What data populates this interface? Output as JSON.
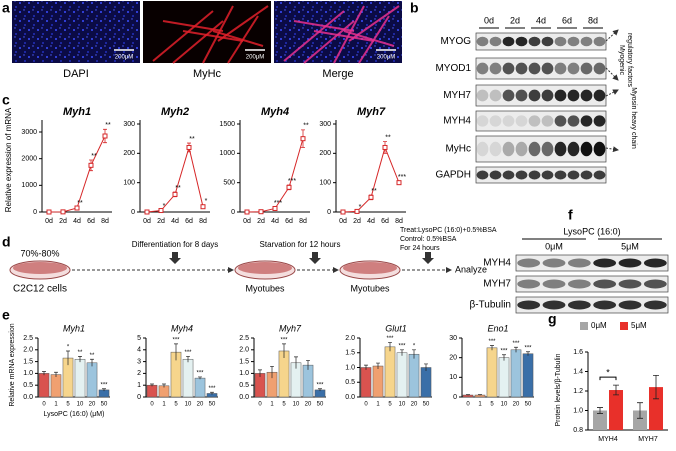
{
  "panels": {
    "a": {
      "letter": "a",
      "images": [
        {
          "label": "DAPI",
          "scale_bar": "200μM"
        },
        {
          "label": "MyHc",
          "scale_bar": "200μM"
        },
        {
          "label": "Merge",
          "scale_bar": "200μM"
        }
      ]
    },
    "b": {
      "letter": "b",
      "lanes": [
        "0d",
        "2d",
        "4d",
        "6d",
        "8d"
      ],
      "bands": [
        "MYOG",
        "MYOD1",
        "MYH7",
        "MYH4",
        "MyHc",
        "GAPDH"
      ],
      "groups": [
        {
          "lines": [
            "Myogenic",
            "regulatory factors"
          ]
        },
        {
          "lines": [
            "Myosin heavy chain"
          ]
        }
      ]
    },
    "c": {
      "letter": "c",
      "ylabel": "Relative expression of mRNA",
      "charts": [
        {
          "type": "line",
          "title": "Myh1",
          "color": "#d62728",
          "categories": [
            "0d",
            "2d",
            "4d",
            "6d",
            "8d"
          ],
          "values": [
            0,
            5,
            150,
            1750,
            2850
          ],
          "errors": [
            5,
            5,
            40,
            200,
            250
          ],
          "significance": [
            null,
            null,
            "**",
            "**",
            "**"
          ],
          "ylim": [
            0,
            3300
          ],
          "yticks": [
            0,
            1000,
            2000,
            3000
          ]
        },
        {
          "type": "line",
          "title": "Myh2",
          "color": "#d62728",
          "categories": [
            "0d",
            "2d",
            "4d",
            "6d",
            "8d"
          ],
          "values": [
            0,
            5,
            60,
            220,
            18
          ],
          "errors": [
            1,
            2,
            8,
            15,
            5
          ],
          "significance": [
            null,
            "*",
            "**",
            "**",
            "*"
          ],
          "ylim": [
            0,
            300
          ],
          "yticks": [
            0,
            100,
            200,
            300
          ]
        },
        {
          "type": "line",
          "title": "Myh4",
          "color": "#d62728",
          "categories": [
            "0d",
            "2d",
            "4d",
            "6d",
            "8d"
          ],
          "values": [
            0,
            5,
            60,
            420,
            1250
          ],
          "errors": [
            2,
            3,
            20,
            40,
            150
          ],
          "significance": [
            null,
            null,
            "***",
            "***",
            "**"
          ],
          "ylim": [
            0,
            1500
          ],
          "yticks": [
            0,
            500,
            1000,
            1500
          ]
        },
        {
          "type": "line",
          "title": "Myh7",
          "color": "#d62728",
          "categories": [
            "0d",
            "2d",
            "4d",
            "6d",
            "8d"
          ],
          "values": [
            0,
            2,
            50,
            220,
            100
          ],
          "errors": [
            1,
            1,
            8,
            20,
            6
          ],
          "significance": [
            null,
            "*",
            "**",
            "**",
            "***"
          ],
          "ylim": [
            0,
            300
          ],
          "yticks": [
            0,
            100,
            200,
            300
          ]
        }
      ]
    },
    "d": {
      "letter": "d",
      "confluence": "70%-80%",
      "cells": "C2C12 cells",
      "step1": "Differentiation for 8 days",
      "myotubes1": "Myotubes",
      "step2": "Starvation for 12 hours",
      "myotubes2": "Myotubes",
      "treatment": [
        "Treat:LysoPC (16:0)+0.5%BSA",
        "Control: 0.5%BSA",
        "For 24 hours"
      ],
      "analyze": "Analyze"
    },
    "e": {
      "letter": "e",
      "ylabel": "Relative mRNA expression",
      "xlabel": "LysoPC (16:0) (μM)",
      "colors": [
        "#d9534f",
        "#f0a070",
        "#f6d58c",
        "#e4f1f1",
        "#9cc4dd",
        "#3a6fa8"
      ],
      "charts": [
        {
          "type": "bar",
          "title": "Myh1",
          "categories": [
            "0",
            "1",
            "5",
            "10",
            "20",
            "50"
          ],
          "values": [
            1.0,
            0.95,
            1.65,
            1.6,
            1.45,
            0.3
          ],
          "errors": [
            0.08,
            0.1,
            0.3,
            0.12,
            0.15,
            0.05
          ],
          "significance": [
            null,
            null,
            "*",
            "**",
            "**",
            "***"
          ],
          "ylim": [
            0,
            2.5
          ],
          "yticks": [
            {
              "value": 0,
              "label": "0.0"
            },
            0.5,
            {
              "value": 1,
              "label": "1.0"
            },
            1.5,
            {
              "value": 2,
              "label": "2.0"
            },
            2.5
          ]
        },
        {
          "type": "bar",
          "title": "Myh4",
          "categories": [
            "0",
            "1",
            "5",
            "10",
            "20",
            "50"
          ],
          "values": [
            1.0,
            0.95,
            3.8,
            3.2,
            1.6,
            0.3
          ],
          "errors": [
            0.1,
            0.15,
            0.7,
            0.25,
            0.1,
            0.1
          ],
          "significance": [
            null,
            null,
            "***",
            "***",
            "***",
            "***"
          ],
          "ylim": [
            0,
            5
          ],
          "yticks": [
            0,
            1,
            2,
            3,
            4,
            5
          ]
        },
        {
          "type": "bar",
          "title": "Myh7",
          "categories": [
            "0",
            "1",
            "5",
            "10",
            "20",
            "50"
          ],
          "values": [
            1.0,
            1.05,
            1.95,
            1.45,
            1.35,
            0.3
          ],
          "errors": [
            0.15,
            0.25,
            0.3,
            0.25,
            0.2,
            0.05
          ],
          "significance": [
            null,
            null,
            "***",
            null,
            null,
            "***"
          ],
          "ylim": [
            0,
            2.5
          ],
          "yticks": [
            {
              "value": 0,
              "label": "0.0"
            },
            0.5,
            {
              "value": 1,
              "label": "1.0"
            },
            1.5,
            {
              "value": 2,
              "label": "2.0"
            },
            2.5
          ]
        },
        {
          "type": "bar",
          "title": "Glut1",
          "categories": [
            "0",
            "1",
            "5",
            "10",
            "20",
            "50"
          ],
          "values": [
            1.0,
            1.05,
            1.7,
            1.5,
            1.45,
            1.0
          ],
          "errors": [
            0.08,
            0.1,
            0.15,
            0.1,
            0.15,
            0.12
          ],
          "significance": [
            null,
            null,
            "***",
            "***",
            "*",
            null
          ],
          "ylim": [
            0,
            2
          ],
          "yticks": [
            {
              "value": 0,
              "label": "0.0"
            },
            0.5,
            {
              "value": 1,
              "label": "1.0"
            },
            1.5,
            {
              "value": 2,
              "label": "2.0"
            }
          ]
        },
        {
          "type": "bar",
          "title": "Eno1",
          "categories": [
            "0",
            "1",
            "5",
            "10",
            "20",
            "50"
          ],
          "values": [
            1,
            1,
            25,
            20,
            24,
            22
          ],
          "errors": [
            0.2,
            0.2,
            1.2,
            1.5,
            1.3,
            1.0
          ],
          "significance": [
            null,
            null,
            "***",
            "***",
            "***",
            "***"
          ],
          "ylim": [
            0,
            30
          ],
          "yticks": [
            0,
            10,
            20,
            30
          ]
        }
      ]
    },
    "f": {
      "letter": "f",
      "title": "LysoPC (16:0)",
      "groups": [
        "0μM",
        "5μM"
      ],
      "bands": [
        "MYH4",
        "MYH7",
        "β-Tubulin"
      ]
    },
    "g": {
      "letter": "g",
      "type": "grouped-bar",
      "ylabel": "Protein levels/β-Tubulin",
      "categories": [
        "MYH4",
        "MYH7"
      ],
      "series": [
        {
          "name": "0μM",
          "color": "#a6a6a6",
          "values": [
            1.0,
            1.0
          ],
          "errors": [
            0.03,
            0.08
          ]
        },
        {
          "name": "5μM",
          "color": "#e8302a",
          "values": [
            1.21,
            1.24
          ],
          "errors": [
            0.05,
            0.12
          ]
        }
      ],
      "significance": [
        "*",
        null
      ],
      "ylim": [
        0.8,
        1.6
      ],
      "yticks": [
        0.8,
        {
          "value": 1,
          "label": "1.0"
        },
        1.2,
        1.4,
        1.6
      ]
    }
  }
}
